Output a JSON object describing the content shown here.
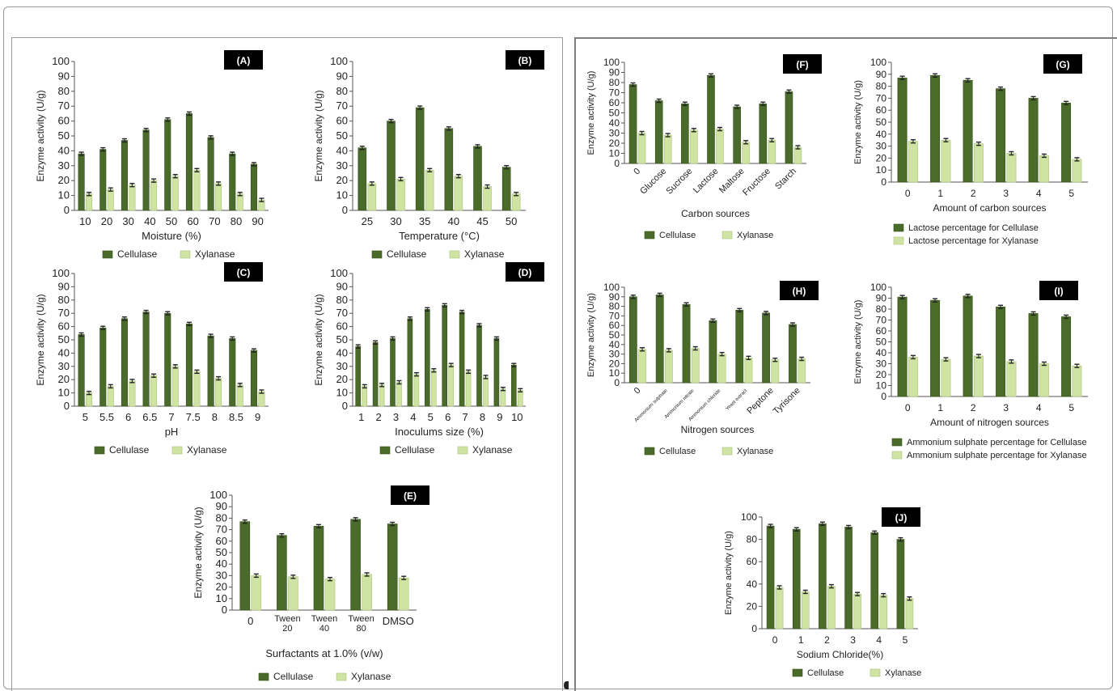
{
  "colors": {
    "cellulase": "#4a6b2a",
    "xylanase": "#cfe3a2",
    "label_bg": "#000000",
    "label_fg": "#ffffff"
  },
  "chart_data": [
    {
      "id": "A",
      "type": "bar",
      "panel_label": "(A)",
      "ylabel": "Enzyme activity (U/g)",
      "xlabel": "Moisture (%)",
      "categories": [
        "10",
        "20",
        "30",
        "40",
        "50",
        "60",
        "70",
        "80",
        "90"
      ],
      "series": [
        {
          "name": "Cellulase",
          "values": [
            38,
            41,
            47,
            54,
            61,
            65,
            49,
            38,
            31
          ]
        },
        {
          "name": "Xylanase",
          "values": [
            11,
            14,
            17,
            20,
            23,
            27,
            18,
            11,
            7
          ]
        }
      ],
      "ylim": [
        0,
        100
      ],
      "yticks": [
        0,
        10,
        20,
        30,
        40,
        50,
        60,
        70,
        80,
        90,
        100
      ],
      "legend": [
        "Cellulase",
        "Xylanase"
      ],
      "rotate_x": false
    },
    {
      "id": "B",
      "type": "bar",
      "panel_label": "(B)",
      "ylabel": "Enzyme activity (U/g)",
      "xlabel": "Temperature (°C)",
      "categories": [
        "25",
        "30",
        "35",
        "40",
        "45",
        "50"
      ],
      "series": [
        {
          "name": "Cellulase",
          "values": [
            42,
            60,
            69,
            55,
            43,
            29
          ]
        },
        {
          "name": "Xylanase",
          "values": [
            18,
            21,
            27,
            23,
            16,
            11
          ]
        }
      ],
      "ylim": [
        0,
        100
      ],
      "yticks": [
        0,
        10,
        20,
        30,
        40,
        50,
        60,
        70,
        80,
        90,
        100
      ],
      "legend": [
        "Cellulase",
        "Xylanase"
      ],
      "rotate_x": false
    },
    {
      "id": "C",
      "type": "bar",
      "panel_label": "(C)",
      "ylabel": "Enzyme activity (U/g)",
      "xlabel": "pH",
      "categories": [
        "5",
        "5.5",
        "6",
        "6.5",
        "7",
        "7.5",
        "8",
        "8.5",
        "9"
      ],
      "series": [
        {
          "name": "Cellulase",
          "values": [
            54,
            59,
            66,
            71,
            70,
            62,
            53,
            51,
            42
          ]
        },
        {
          "name": "Xylanase",
          "values": [
            10,
            15,
            19,
            23,
            30,
            26,
            21,
            16,
            11
          ]
        }
      ],
      "ylim": [
        0,
        100
      ],
      "yticks": [
        0,
        10,
        20,
        30,
        40,
        50,
        60,
        70,
        80,
        90,
        100
      ],
      "legend": [
        "Cellulase",
        "Xylanase"
      ],
      "rotate_x": false
    },
    {
      "id": "D",
      "type": "bar",
      "panel_label": "(D)",
      "ylabel": "Enzyme activity (U/g)",
      "xlabel": "Inoculums size (%)",
      "categories": [
        "1",
        "2",
        "3",
        "4",
        "5",
        "6",
        "7",
        "8",
        "9",
        "10"
      ],
      "series": [
        {
          "name": "Cellulase",
          "values": [
            45,
            48,
            51,
            66,
            73,
            76,
            71,
            61,
            51,
            31
          ]
        },
        {
          "name": "Xylanase",
          "values": [
            15,
            16,
            18,
            24,
            27,
            31,
            26,
            22,
            13,
            12
          ]
        }
      ],
      "ylim": [
        0,
        100
      ],
      "yticks": [
        0,
        10,
        20,
        30,
        40,
        50,
        60,
        70,
        80,
        90,
        100
      ],
      "legend": [
        "Cellulase",
        "Xylanase"
      ],
      "rotate_x": false
    },
    {
      "id": "E",
      "type": "bar",
      "panel_label": "(E)",
      "ylabel": "Enzyme activity (U/g)",
      "xlabel": "Surfactants at 1.0% (v/w)",
      "categories": [
        "0",
        "Tween 20",
        "Tween 40",
        "Tween 80",
        "DMSO"
      ],
      "series": [
        {
          "name": "Cellulase",
          "values": [
            77,
            65,
            73,
            79,
            75
          ]
        },
        {
          "name": "Xylanase",
          "values": [
            30,
            29,
            27,
            31,
            28
          ]
        }
      ],
      "ylim": [
        0,
        100
      ],
      "yticks": [
        0,
        10,
        20,
        30,
        40,
        50,
        60,
        70,
        80,
        90,
        100
      ],
      "legend": [
        "Cellulase",
        "Xylanase"
      ],
      "rotate_x": false
    },
    {
      "id": "F",
      "type": "bar",
      "panel_label": "(F)",
      "ylabel": "Enzyme activity (U/g)",
      "xlabel": "Carbon sources",
      "categories": [
        "0",
        "Glucose",
        "Sucrose",
        "Lactose",
        "Maltose",
        "Fructose",
        "Starch"
      ],
      "series": [
        {
          "name": "Cellulase",
          "values": [
            78,
            62,
            59,
            87,
            56,
            59,
            71
          ]
        },
        {
          "name": "Xylanase",
          "values": [
            30,
            28,
            33,
            34,
            21,
            23,
            16
          ]
        }
      ],
      "ylim": [
        0,
        100
      ],
      "yticks": [
        0,
        10,
        20,
        30,
        40,
        50,
        60,
        70,
        80,
        90,
        100
      ],
      "legend": [
        "Cellulase",
        "Xylanase"
      ],
      "rotate_x": true
    },
    {
      "id": "G",
      "type": "bar",
      "panel_label": "(G)",
      "ylabel": "Enzyme activity (U/g)",
      "xlabel": "Amount of carbon sources",
      "categories": [
        "0",
        "1",
        "2",
        "3",
        "4",
        "5"
      ],
      "series": [
        {
          "name": "Lactose percentage for Cellulase",
          "values": [
            87,
            89,
            85,
            78,
            70,
            66
          ]
        },
        {
          "name": "Lactose percentage for Xylanase",
          "values": [
            34,
            35,
            32,
            24,
            22,
            19
          ]
        }
      ],
      "ylim": [
        0,
        100
      ],
      "yticks": [
        0,
        10,
        20,
        30,
        40,
        50,
        60,
        70,
        80,
        90,
        100
      ],
      "legend": [
        "Lactose percentage for Cellulase",
        "Lactose percentage for Xylanase"
      ],
      "rotate_x": false
    },
    {
      "id": "H",
      "type": "bar",
      "panel_label": "(H)",
      "ylabel": "Enzyme activity (U/g)",
      "xlabel": "Nitrogen sources",
      "categories": [
        "0",
        "Ammonium sulphate",
        "Ammonium nitrate",
        "Ammonium chloride",
        "Yeast extract",
        "Peptone",
        "Tyrisone"
      ],
      "series": [
        {
          "name": "Cellulase",
          "values": [
            90,
            92,
            82,
            65,
            76,
            73,
            61
          ]
        },
        {
          "name": "Xylanase",
          "values": [
            35,
            34,
            36,
            30,
            26,
            24,
            25
          ]
        }
      ],
      "ylim": [
        0,
        100
      ],
      "yticks": [
        0,
        10,
        20,
        30,
        40,
        50,
        60,
        70,
        80,
        90,
        100
      ],
      "legend": [
        "Cellulase",
        "Xylanase"
      ],
      "rotate_x": true
    },
    {
      "id": "I",
      "type": "bar",
      "panel_label": "(I)",
      "ylabel": "Enzyme activity (U/g)",
      "xlabel": "Amount of nitrogen sources",
      "categories": [
        "0",
        "1",
        "2",
        "3",
        "4",
        "5"
      ],
      "series": [
        {
          "name": "Ammonium sulphate percentage for Cellulase",
          "values": [
            91,
            88,
            92,
            82,
            76,
            73
          ]
        },
        {
          "name": "Ammonium sulphate percentage for Xylanase",
          "values": [
            36,
            34,
            37,
            32,
            30,
            28
          ]
        }
      ],
      "ylim": [
        0,
        100
      ],
      "yticks": [
        0,
        10,
        20,
        30,
        40,
        50,
        60,
        70,
        80,
        90,
        100
      ],
      "legend": [
        "Ammonium sulphate percentage for Cellulase",
        "Ammonium sulphate percentage for Xylanase"
      ],
      "rotate_x": false
    },
    {
      "id": "J",
      "type": "bar",
      "panel_label": "(J)",
      "ylabel": "Enzyme activity (U/g)",
      "xlabel": "Sodium Chloride(%)",
      "categories": [
        "0",
        "1",
        "2",
        "3",
        "4",
        "5"
      ],
      "series": [
        {
          "name": "Cellulase",
          "values": [
            92,
            89,
            94,
            91,
            86,
            80
          ]
        },
        {
          "name": "Xylanase",
          "values": [
            37,
            33,
            38,
            31,
            30,
            27
          ]
        }
      ],
      "ylim": [
        0,
        100
      ],
      "yticks": [
        0,
        20,
        40,
        60,
        80,
        100
      ],
      "legend": [
        "Cellulase",
        "Xylanase"
      ],
      "rotate_x": false
    }
  ]
}
